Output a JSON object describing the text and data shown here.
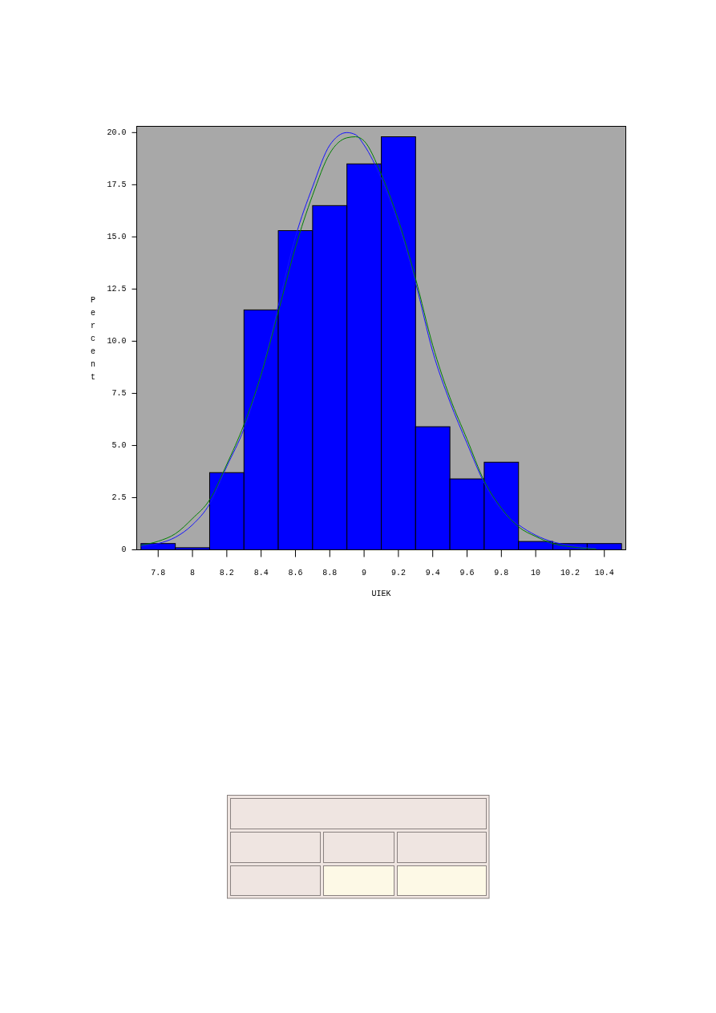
{
  "chart_data": {
    "type": "histogram",
    "bins": [
      7.7,
      7.9,
      8.1,
      8.3,
      8.5,
      8.7,
      8.9,
      9.1,
      9.3,
      9.5,
      9.7,
      9.9,
      10.1,
      10.3,
      10.5
    ],
    "values": [
      0.3,
      0.1,
      3.7,
      11.5,
      15.3,
      16.5,
      18.5,
      19.8,
      5.9,
      3.4,
      4.2,
      0.4,
      0.3,
      0.3
    ],
    "color": "#0000ff",
    "series": [
      {
        "type": "line",
        "color": "#1414ff",
        "x": [
          7.7,
          7.8,
          7.9,
          8.0,
          8.1,
          8.2,
          8.3,
          8.4,
          8.5,
          8.6,
          8.7,
          8.8,
          8.9,
          8.95,
          9.0,
          9.1,
          9.2,
          9.3,
          9.4,
          9.5,
          9.6,
          9.7,
          9.8,
          9.9,
          10.0,
          10.1,
          10.2,
          10.3,
          10.35
        ],
        "values": [
          0.17,
          0.3,
          0.6,
          1.2,
          2.2,
          4.0,
          5.8,
          8.4,
          11.7,
          15.0,
          17.4,
          19.4,
          20.0,
          19.9,
          19.4,
          17.8,
          15.6,
          12.8,
          9.5,
          7.1,
          5.1,
          3.2,
          1.9,
          1.2,
          0.7,
          0.38,
          0.22,
          0.1,
          0.06
        ]
      },
      {
        "type": "line",
        "color": "#008000",
        "x": [
          7.7,
          7.8,
          7.9,
          8.0,
          8.1,
          8.2,
          8.3,
          8.4,
          8.5,
          8.6,
          8.7,
          8.8,
          8.9,
          8.95,
          9.0,
          9.1,
          9.2,
          9.3,
          9.4,
          9.5,
          9.6,
          9.7,
          9.8,
          9.9,
          10.0,
          10.1,
          10.2,
          10.3,
          10.35
        ],
        "values": [
          0.22,
          0.41,
          0.77,
          1.5,
          2.4,
          4.1,
          6.0,
          8.4,
          11.4,
          14.5,
          17.0,
          19.0,
          19.75,
          19.8,
          19.6,
          18.0,
          15.8,
          13.0,
          9.8,
          7.3,
          5.3,
          3.3,
          2.0,
          1.1,
          0.64,
          0.3,
          0.15,
          0.06,
          0.04
        ]
      }
    ],
    "xlim": [
      7.675,
      10.525
    ],
    "ylim": [
      0,
      20.3
    ],
    "xticks": [
      7.8,
      8,
      8.2,
      8.4,
      8.6,
      8.8,
      9,
      9.2,
      9.4,
      9.6,
      9.8,
      10,
      10.2,
      10.4
    ],
    "yticks": [
      0,
      2.5,
      {
        "value": 5,
        "label": "5.0"
      },
      7.5,
      {
        "value": 10,
        "label": "10.0"
      },
      12.5,
      {
        "value": 15,
        "label": "15.0"
      },
      17.5,
      {
        "value": 20,
        "label": "20.0"
      }
    ],
    "xlabel": "UIEK",
    "ylabel": "Percent"
  }
}
